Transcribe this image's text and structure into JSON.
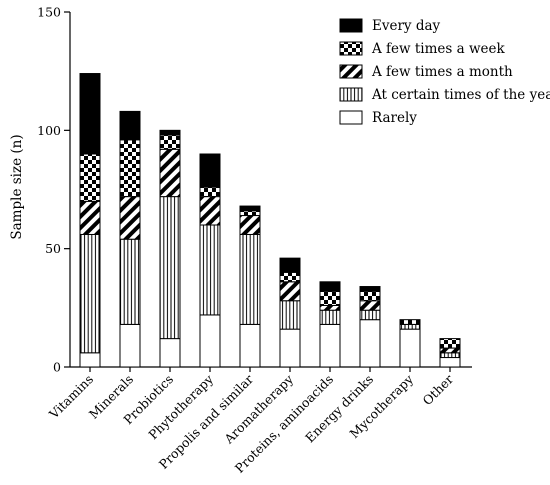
{
  "chart_data": {
    "type": "bar",
    "stacked": true,
    "categories": [
      "Vitamins",
      "Minerals",
      "Probiotics",
      "Phytotherapy",
      "Propolis and similar",
      "Aromatherapy",
      "Proteins, aminoacids",
      "Energy drinks",
      "Mycotherapy",
      "Other"
    ],
    "series": [
      {
        "name": "Rarely",
        "pattern": "plain",
        "values": [
          6,
          18,
          12,
          22,
          18,
          16,
          18,
          20,
          16,
          4
        ]
      },
      {
        "name": "At certain times of the year",
        "pattern": "vertical-lines",
        "values": [
          50,
          36,
          60,
          38,
          38,
          12,
          6,
          4,
          2,
          2
        ]
      },
      {
        "name": "A few times a month",
        "pattern": "diagonal-stripes",
        "values": [
          14,
          18,
          20,
          12,
          8,
          8,
          2,
          4,
          0,
          2
        ]
      },
      {
        "name": "A few times a week",
        "pattern": "checkerboard",
        "values": [
          20,
          24,
          6,
          4,
          2,
          4,
          6,
          4,
          2,
          4
        ]
      },
      {
        "name": "Every day",
        "pattern": "solid-black",
        "values": [
          34,
          12,
          2,
          14,
          2,
          6,
          4,
          2,
          0,
          0
        ]
      }
    ],
    "ylabel": "Sample size (n)",
    "xlabel": "",
    "title": "",
    "ylim": [
      0,
      150
    ],
    "yticks": [
      0,
      50,
      100,
      150
    ],
    "grid": false,
    "legend_placement": "top-right",
    "legend_order": [
      "Every day",
      "A few times a week",
      "A few times a month",
      "At certain times of the year",
      "Rarely"
    ],
    "colors": {
      "stroke": "#000000",
      "fill": "#ffffff"
    }
  }
}
